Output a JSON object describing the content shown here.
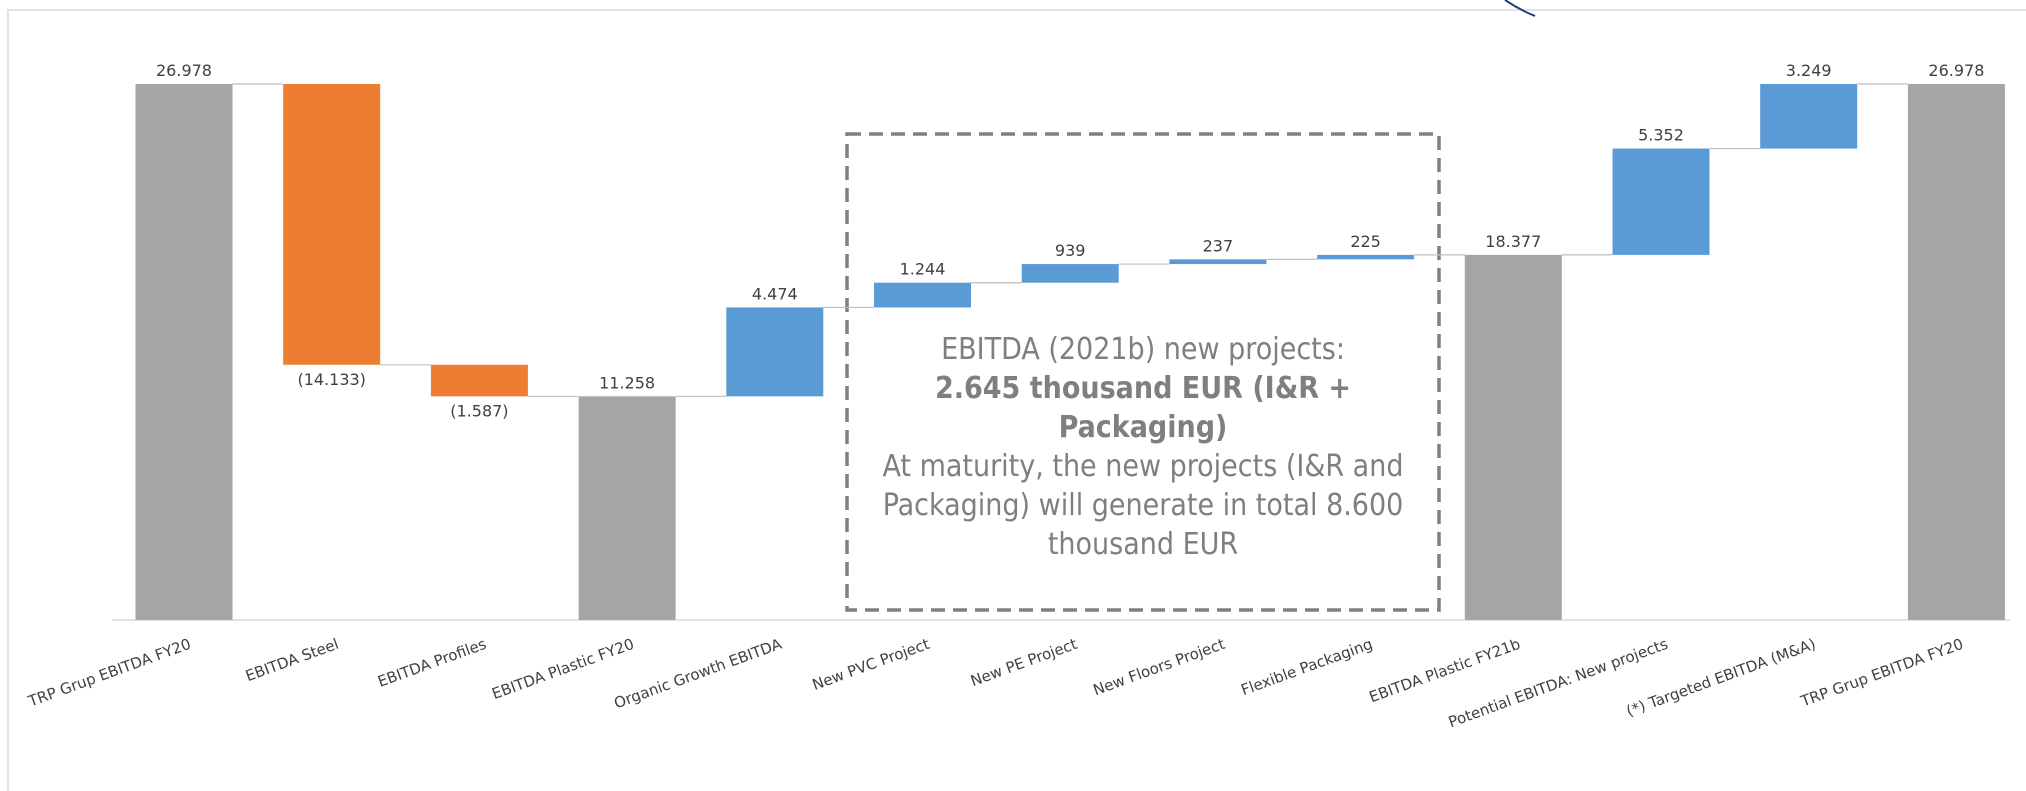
{
  "chart_data": {
    "type": "waterfall",
    "categories": [
      "TRP Grup EBITDA FY20",
      "EBITDA Steel",
      "EBITDA Profiles",
      "EBITDA Plastic FY20",
      "Organic Growth EBITDA",
      "New PVC Project",
      "New PE Project",
      "New Floors Project",
      "Flexible Packaging",
      "EBITDA Plastic FY21b",
      "Potential EBITDA: New projects",
      "(*) Targeted EBITDA (M&A)",
      "TRP Grup EBITDA FY20"
    ],
    "values": [
      26978,
      -14133,
      -1587,
      11258,
      4474,
      1244,
      939,
      237,
      225,
      18377,
      5352,
      3249,
      26978
    ],
    "value_labels": [
      "26.978",
      "(14.133)",
      "(1.587)",
      "11.258",
      "4.474",
      "1.244",
      "939",
      "237",
      "225",
      "18.377",
      "5.352",
      "3.249",
      "26.978"
    ],
    "measures": [
      "total",
      "relative",
      "relative",
      "total",
      "relative",
      "relative",
      "relative",
      "relative",
      "relative",
      "total",
      "relative",
      "relative",
      "total"
    ],
    "colors": {
      "total": "#a5a5a5",
      "increase": "#5b9bd5",
      "decrease": "#ed7d31"
    },
    "annotation": {
      "heading": "EBITDA (2021b) new projects:",
      "highlight": "2.645 thousand EUR (I&R + Packaging)",
      "body": "At maturity, the new projects (I&R and Packaging) will generate in total 8.600 thousand EUR"
    }
  }
}
